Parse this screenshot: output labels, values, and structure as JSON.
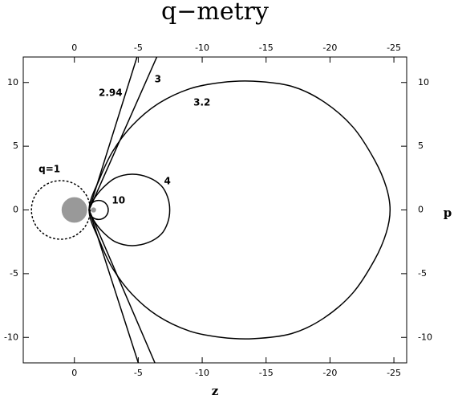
{
  "chart_data": {
    "type": "line",
    "title": "q−metry",
    "xlabel": "z",
    "ylabel": "p",
    "xlim": [
      4,
      -26
    ],
    "ylim": [
      -12,
      12
    ],
    "xticks": [
      0,
      -5,
      -10,
      -15,
      -20,
      -25
    ],
    "yticks": [
      -10,
      -5,
      0,
      5,
      10
    ],
    "series": [
      {
        "color": "#000",
        "dash": "dotted",
        "smooth": true,
        "x": [
          3.36,
          3.19,
          2.69,
          1.94,
          1.06,
          0.18,
          -0.57,
          -1.07,
          -1.24,
          -1.07,
          -0.57,
          0.18,
          1.06,
          1.94,
          2.69,
          3.19,
          3.36
        ],
        "values": [
          0,
          0.88,
          1.63,
          2.13,
          2.3,
          2.13,
          1.63,
          0.88,
          0,
          -0.88,
          -1.63,
          -2.13,
          -2.3,
          -2.13,
          -1.63,
          -0.88,
          0
        ]
      },
      {
        "color": "#000",
        "dash": "solid",
        "smooth": true,
        "x": [
          -2.65,
          -2.55,
          -2.275,
          -1.9,
          -1.525,
          -1.25,
          -1.15,
          -1.25,
          -1.525,
          -1.9,
          -2.275,
          -2.55,
          -2.65
        ],
        "values": [
          0,
          0.375,
          0.65,
          0.75,
          0.65,
          0.375,
          0,
          -0.375,
          -0.65,
          -0.75,
          -0.65,
          -0.375,
          0
        ]
      },
      {
        "color": "#000",
        "dash": "solid",
        "smooth": true,
        "x": [
          -1.15,
          -1.5,
          -2.2,
          -3.2,
          -4.5,
          -5.8,
          -6.8,
          -7.3,
          -7.46,
          -7.3,
          -6.8,
          -5.8,
          -4.5,
          -3.2,
          -2.2,
          -1.5,
          -1.15
        ],
        "values": [
          0,
          0.8,
          1.7,
          2.5,
          2.8,
          2.55,
          1.9,
          1.0,
          0,
          -1.0,
          -1.9,
          -2.55,
          -2.8,
          -2.5,
          -1.7,
          -0.8,
          0
        ]
      },
      {
        "color": "#000",
        "dash": "solid",
        "smooth": true,
        "x": [
          -1.15,
          -2,
          -3,
          -4.5,
          -6.5,
          -9,
          -11.5,
          -14,
          -17,
          -19.5,
          -21.8,
          -23.5,
          -24.4,
          -24.7,
          -24.4,
          -23.5,
          -21.8,
          -19.5,
          -17,
          -14,
          -11.5,
          -9,
          -6.5,
          -4.5,
          -3,
          -2,
          -1.15
        ],
        "values": [
          0,
          2.5,
          4.6,
          6.6,
          8.3,
          9.5,
          10.0,
          10.1,
          9.7,
          8.5,
          6.5,
          3.9,
          1.8,
          0,
          -1.8,
          -3.9,
          -6.5,
          -8.5,
          -9.7,
          -10.1,
          -10.0,
          -9.5,
          -8.3,
          -6.6,
          -4.6,
          -2.5,
          0
        ]
      },
      {
        "color": "#000",
        "dash": "solid",
        "smooth": false,
        "x": [
          -4.9,
          -1.15,
          -5.0
        ],
        "values": [
          12,
          0,
          -12
        ]
      },
      {
        "color": "#000",
        "dash": "solid",
        "smooth": false,
        "x": [
          -6.45,
          -1.15,
          -6.3
        ],
        "values": [
          12,
          0,
          -12
        ]
      }
    ],
    "disks": [
      {
        "x": 0,
        "y": 0,
        "radius": 1,
        "color": "#999999"
      },
      {
        "x": -1.5,
        "y": 0,
        "radius": 0.2,
        "color": "#999999"
      }
    ],
    "annotations": [
      {
        "text": "2.94",
        "x": -2.83,
        "y": 9.17
      },
      {
        "text": "3",
        "x": -6.53,
        "y": 10.24
      },
      {
        "text": "3.2",
        "x": -9.98,
        "y": 8.41
      },
      {
        "text": "4",
        "x": -7.28,
        "y": 2.24
      },
      {
        "text": "10",
        "x": -3.45,
        "y": 0.72
      },
      {
        "text": "q=1",
        "x": 1.95,
        "y": 3.18
      }
    ]
  }
}
